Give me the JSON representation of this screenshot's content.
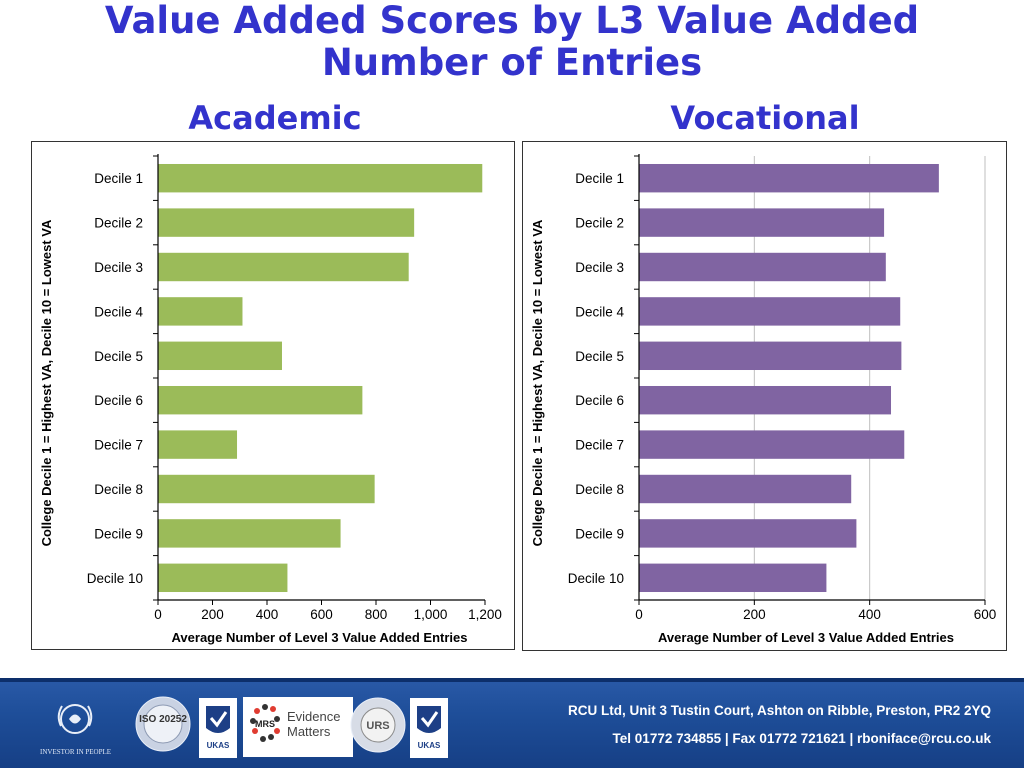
{
  "title": {
    "line1": "Value Added Scores by L3 Value Added",
    "line2": "Number of Entries"
  },
  "chart_data": [
    {
      "type": "bar",
      "orientation": "horizontal",
      "panel_title": "Academic",
      "categories": [
        "Decile 1",
        "Decile 2",
        "Decile 3",
        "Decile 4",
        "Decile 5",
        "Decile 6",
        "Decile 7",
        "Decile 8",
        "Decile 9",
        "Decile 10"
      ],
      "values": [
        1190,
        940,
        920,
        310,
        455,
        750,
        290,
        795,
        670,
        475
      ],
      "xlabel": "Average Number of Level 3 Value Added Entries",
      "ylabel": "College Decile  1 = Highest VA, Decile 10 = Lowest VA",
      "xlim": [
        0,
        1200
      ],
      "ticks": [
        0,
        200,
        400,
        600,
        800,
        1000,
        1200
      ],
      "tick_labels": [
        "0",
        "200",
        "400",
        "600",
        "800",
        "1,000",
        "1,200"
      ],
      "bar_color": "#9bbb59",
      "grid": false
    },
    {
      "type": "bar",
      "orientation": "horizontal",
      "panel_title": "Vocational",
      "categories": [
        "Decile 1",
        "Decile 2",
        "Decile 3",
        "Decile 4",
        "Decile 5",
        "Decile 6",
        "Decile 7",
        "Decile 8",
        "Decile 9",
        "Decile 10"
      ],
      "values": [
        520,
        425,
        428,
        453,
        455,
        437,
        460,
        368,
        377,
        325
      ],
      "xlabel": "Average Number of Level 3 Value Added Entries",
      "ylabel": "College Decile  1 = Highest VA, Decile 10 = Lowest VA",
      "xlim": [
        0,
        600
      ],
      "ticks": [
        0,
        200,
        400,
        600
      ],
      "tick_labels": [
        "0",
        "200",
        "400",
        "600"
      ],
      "bar_color": "#8064a2",
      "grid": true
    }
  ],
  "footer": {
    "address": "RCU Ltd, Unit 3 Tustin Court, Ashton on Ribble, Preston, PR2 2YQ",
    "contact": "Tel 01772 734855 | Fax 01772 721621  | rboniface@rcu.co.uk",
    "logos": {
      "investors": "INVESTOR IN PEOPLE",
      "iso20252": "ISO 20252",
      "ukas": "UKAS",
      "mrs": "MRS",
      "mrs_tagline_1": "Evidence",
      "mrs_tagline_2": "Matters",
      "urs": "URS",
      "ukas2": "UKAS"
    },
    "brand_colors": {
      "footer_bg": "#1e4e99",
      "title": "#3333cc"
    }
  }
}
